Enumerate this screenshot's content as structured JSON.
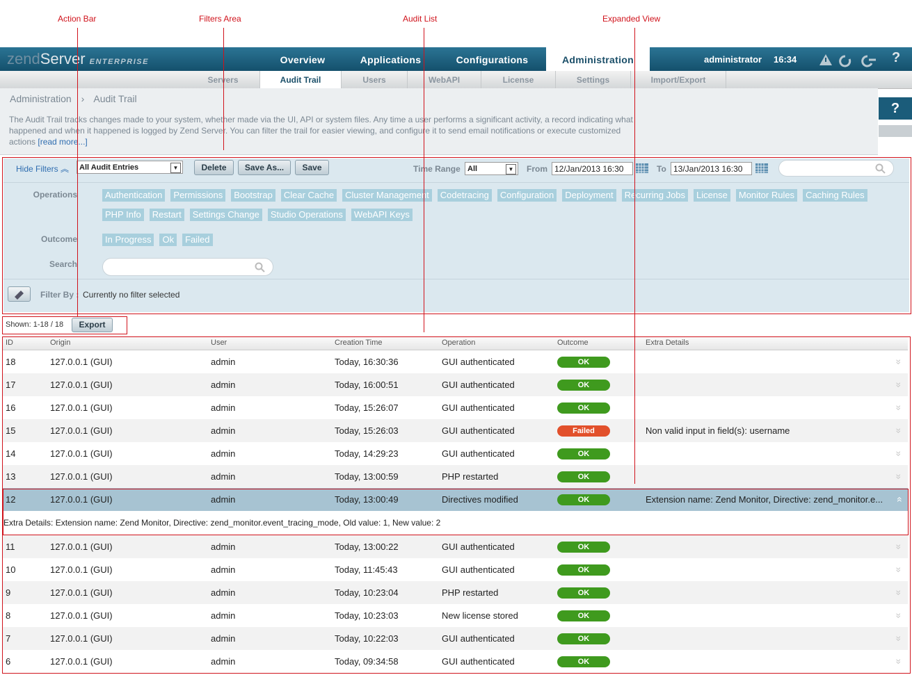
{
  "annotations": [
    "Action Bar",
    "Filters Area",
    "Audit List",
    "Expanded View"
  ],
  "header": {
    "logo": {
      "brand": "zend",
      "product": "Server",
      "edition": "ENTERPRISE"
    },
    "tabs": [
      "Overview",
      "Applications",
      "Configurations",
      "Administration"
    ],
    "active_tab": 3,
    "user": "administrator",
    "time": "16:34",
    "help": "?"
  },
  "subnav": {
    "items": [
      "Servers",
      "Audit Trail",
      "Users",
      "WebAPI",
      "License",
      "Settings",
      "Import/Export"
    ],
    "active": 1
  },
  "breadcrumb": [
    "Administration",
    "Audit Trail"
  ],
  "description": {
    "text": "The Audit Trail tracks changes made to your system, whether made via the UI, API or system files. Any time a user performs a significant activity, a record indicating what happened and when it happened is logged by Zend Server. You can filter the trail for easier viewing, and configure it to send email notifications or execute customized actions",
    "link": "[read more...]"
  },
  "side_help": "?",
  "filters": {
    "toggle": "Hide Filters",
    "preset": "All Audit Entries",
    "buttons": [
      "Delete",
      "Save As...",
      "Save"
    ],
    "time_range_label": "Time Range",
    "time_range": "All",
    "from_label": "From",
    "from": "12/Jan/2013 16:30",
    "to_label": "To",
    "to": "13/Jan/2013 16:30",
    "operations_label": "Operations",
    "operations": [
      "Authentication",
      "Permissions",
      "Bootstrap",
      "Clear Cache",
      "Cluster Management",
      "Codetracing",
      "Configuration",
      "Deployment",
      "Recurring Jobs",
      "License",
      "Monitor Rules",
      "Caching Rules",
      "PHP Info",
      "Restart",
      "Settings Change",
      "Studio Operations",
      "WebAPI Keys"
    ],
    "outcome_label": "Outcome",
    "outcomes": [
      "In Progress",
      "Ok",
      "Failed"
    ],
    "search_label": "Search",
    "filter_by_label": "Filter By :",
    "filter_by": "Currently no filter selected"
  },
  "action_bar": {
    "shown": "Shown: 1-18 / 18",
    "export": "Export"
  },
  "table": {
    "columns": [
      "ID",
      "Origin",
      "User",
      "Creation Time",
      "Operation",
      "Outcome",
      "Extra Details"
    ],
    "status_colors": {
      "OK": "#3f9a1e",
      "Failed": "#e2502b"
    },
    "expanded_row": 6,
    "rows": [
      [
        "18",
        "127.0.0.1 (GUI)",
        "admin",
        "Today, 16:30:36",
        "GUI authenticated",
        "OK",
        ""
      ],
      [
        "17",
        "127.0.0.1 (GUI)",
        "admin",
        "Today, 16:00:51",
        "GUI authenticated",
        "OK",
        ""
      ],
      [
        "16",
        "127.0.0.1 (GUI)",
        "admin",
        "Today, 15:26:07",
        "GUI authenticated",
        "OK",
        ""
      ],
      [
        "15",
        "127.0.0.1 (GUI)",
        "admin",
        "Today, 15:26:03",
        "GUI authenticated",
        "Failed",
        "Non valid input in field(s): username"
      ],
      [
        "14",
        "127.0.0.1 (GUI)",
        "admin",
        "Today, 14:29:23",
        "GUI authenticated",
        "OK",
        ""
      ],
      [
        "13",
        "127.0.0.1 (GUI)",
        "admin",
        "Today, 13:00:59",
        "PHP restarted",
        "OK",
        ""
      ],
      [
        "12",
        "127.0.0.1 (GUI)",
        "admin",
        "Today, 13:00:49",
        "Directives modified",
        "OK",
        "Extension name: Zend Monitor, Directive: zend_monitor.e..."
      ],
      [
        "11",
        "127.0.0.1 (GUI)",
        "admin",
        "Today, 13:00:22",
        "GUI authenticated",
        "OK",
        ""
      ],
      [
        "10",
        "127.0.0.1 (GUI)",
        "admin",
        "Today, 11:45:43",
        "GUI authenticated",
        "OK",
        ""
      ],
      [
        "9",
        "127.0.0.1 (GUI)",
        "admin",
        "Today, 10:23:04",
        "PHP restarted",
        "OK",
        ""
      ],
      [
        "8",
        "127.0.0.1 (GUI)",
        "admin",
        "Today, 10:23:03",
        "New license stored",
        "OK",
        ""
      ],
      [
        "7",
        "127.0.0.1 (GUI)",
        "admin",
        "Today, 10:22:03",
        "GUI authenticated",
        "OK",
        ""
      ],
      [
        "6",
        "127.0.0.1 (GUI)",
        "admin",
        "Today, 09:34:58",
        "GUI authenticated",
        "OK",
        ""
      ]
    ],
    "expanded_text": "Extra Details: Extension name: Zend Monitor, Directive: zend_monitor.event_tracing_mode, Old value: 1, New value: 2"
  }
}
